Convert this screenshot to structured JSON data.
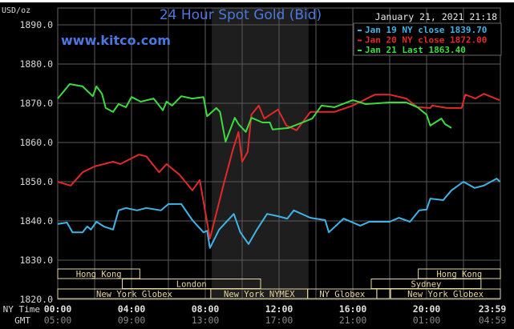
{
  "chart_data": {
    "type": "line",
    "title": "24 Hour Spot Gold (Bid)",
    "watermark": "www.kitco.com",
    "ylabel": "USD/oz",
    "timestamp": "January 21, 2021 21:18",
    "ylim": [
      1820,
      1890
    ],
    "xlim_hours": [
      0,
      24
    ],
    "grid": true,
    "legend_placement": "top-right",
    "y_ticks": [
      "1890.0",
      "1880.0",
      "1870.0",
      "1860.0",
      "1850.0",
      "1840.0",
      "1830.0",
      "1820.0"
    ],
    "x_axis": {
      "ny_label": "NY Time",
      "gmt_label": "GMT",
      "ny_ticks": [
        "00:00",
        "04:00",
        "08:00",
        "12:00",
        "16:00",
        "20:00",
        "23:59"
      ],
      "gmt_ticks": [
        "05:00",
        "09:00",
        "13:00",
        "17:00",
        "21:00",
        "01:00",
        "04:59"
      ]
    },
    "highlight_hours": [
      8.35,
      13.6
    ],
    "sessions": [
      {
        "name": "Hong Kong",
        "row": 0,
        "start": 0,
        "end": 4.45
      },
      {
        "name": "London",
        "row": 1,
        "start": 3.5,
        "end": 11
      },
      {
        "name": "New York Globex",
        "row": 2,
        "start": 0,
        "end": 8.3
      },
      {
        "name": "New York NYMEX",
        "row": 2,
        "start": 8.3,
        "end": 13.55
      },
      {
        "name": "NY Globex",
        "row": 2,
        "start": 13.55,
        "end": 17.3
      },
      {
        "name": "",
        "row": 2,
        "start": 17.3,
        "end": 18
      },
      {
        "name": "New York Globex",
        "row": 2,
        "start": 18.05,
        "end": 24
      },
      {
        "name": "Sydney",
        "row": 1,
        "start": 17,
        "end": 22.95
      },
      {
        "name": "Hong Kong",
        "row": 0,
        "start": 19.55,
        "end": 24
      }
    ],
    "series": [
      {
        "name": "Jan 19 NY close 1839.70",
        "color": "#3fb4e6",
        "points": [
          [
            0,
            1839.2
          ],
          [
            0.5,
            1839.6
          ],
          [
            0.8,
            1837.1
          ],
          [
            1.35,
            1837.1
          ],
          [
            1.6,
            1838.6
          ],
          [
            1.8,
            1837.8
          ],
          [
            2.1,
            1839.8
          ],
          [
            2.5,
            1838.6
          ],
          [
            3.0,
            1837.8
          ],
          [
            3.3,
            1842.7
          ],
          [
            3.7,
            1843.3
          ],
          [
            4.3,
            1842.7
          ],
          [
            4.8,
            1843.3
          ],
          [
            5.6,
            1842.7
          ],
          [
            6.0,
            1844.3
          ],
          [
            6.7,
            1844.3
          ],
          [
            7.3,
            1840.2
          ],
          [
            7.9,
            1837.1
          ],
          [
            8.1,
            1837.5
          ],
          [
            8.25,
            1833.1
          ],
          [
            8.75,
            1837.8
          ],
          [
            9.55,
            1841.8
          ],
          [
            9.9,
            1837.1
          ],
          [
            10.35,
            1834.1
          ],
          [
            10.8,
            1837.8
          ],
          [
            11.35,
            1841.8
          ],
          [
            11.95,
            1841.2
          ],
          [
            12.45,
            1840.6
          ],
          [
            12.8,
            1842.7
          ],
          [
            13.7,
            1840.8
          ],
          [
            14.5,
            1840.2
          ],
          [
            14.7,
            1837.1
          ],
          [
            15.5,
            1840.6
          ],
          [
            16.4,
            1838.8
          ],
          [
            16.9,
            1839.8
          ],
          [
            18.0,
            1839.8
          ],
          [
            18.5,
            1840.8
          ],
          [
            19.1,
            1839.8
          ],
          [
            19.6,
            1842.7
          ],
          [
            20.0,
            1842.9
          ],
          [
            20.2,
            1845.7
          ],
          [
            20.9,
            1845.3
          ],
          [
            21.35,
            1847.8
          ],
          [
            22.0,
            1850.0
          ],
          [
            22.6,
            1848.4
          ],
          [
            23.1,
            1849.0
          ],
          [
            23.8,
            1850.8
          ],
          [
            23.98,
            1850.0
          ]
        ]
      },
      {
        "name": "Jan 20 NY close 1872.00",
        "color": "#e02a2a",
        "points": [
          [
            0,
            1850.0
          ],
          [
            0.7,
            1849.0
          ],
          [
            1.35,
            1852.4
          ],
          [
            2.0,
            1853.9
          ],
          [
            3.0,
            1855.1
          ],
          [
            3.4,
            1854.5
          ],
          [
            4.4,
            1856.9
          ],
          [
            4.8,
            1856.5
          ],
          [
            5.5,
            1852.4
          ],
          [
            5.9,
            1854.5
          ],
          [
            6.6,
            1851.8
          ],
          [
            7.3,
            1847.8
          ],
          [
            7.7,
            1850.4
          ],
          [
            8.25,
            1835.5
          ],
          [
            9.0,
            1849.4
          ],
          [
            9.5,
            1858.2
          ],
          [
            9.8,
            1862.7
          ],
          [
            10.0,
            1855.1
          ],
          [
            10.3,
            1857.6
          ],
          [
            10.5,
            1867.1
          ],
          [
            10.9,
            1869.4
          ],
          [
            11.2,
            1866.1
          ],
          [
            11.95,
            1868.4
          ],
          [
            12.4,
            1864.3
          ],
          [
            12.95,
            1863.1
          ],
          [
            13.7,
            1867.8
          ],
          [
            15.0,
            1867.8
          ],
          [
            16.0,
            1869.4
          ],
          [
            17.2,
            1872.2
          ],
          [
            18.0,
            1872.2
          ],
          [
            18.9,
            1871.2
          ],
          [
            19.5,
            1869.0
          ],
          [
            20.2,
            1868.8
          ],
          [
            20.3,
            1869.4
          ],
          [
            21.1,
            1868.8
          ],
          [
            21.9,
            1868.8
          ],
          [
            22.1,
            1872.2
          ],
          [
            22.65,
            1871.2
          ],
          [
            23.1,
            1872.4
          ],
          [
            23.95,
            1870.8
          ]
        ]
      },
      {
        "name": "Jan 21 Last 1863.40",
        "color": "#3ddc3d",
        "points": [
          [
            0,
            1871.2
          ],
          [
            0.65,
            1874.9
          ],
          [
            1.35,
            1874.3
          ],
          [
            1.9,
            1871.8
          ],
          [
            2.1,
            1874.3
          ],
          [
            2.4,
            1872.4
          ],
          [
            2.6,
            1868.8
          ],
          [
            3.0,
            1867.8
          ],
          [
            3.3,
            1869.8
          ],
          [
            3.7,
            1869.0
          ],
          [
            4.0,
            1871.6
          ],
          [
            4.5,
            1870.4
          ],
          [
            5.2,
            1871.2
          ],
          [
            5.7,
            1868.2
          ],
          [
            5.9,
            1870.4
          ],
          [
            6.2,
            1869.4
          ],
          [
            6.7,
            1871.8
          ],
          [
            7.3,
            1871.2
          ],
          [
            7.9,
            1871.6
          ],
          [
            8.1,
            1866.7
          ],
          [
            8.6,
            1868.8
          ],
          [
            8.8,
            1867.8
          ],
          [
            9.1,
            1860.2
          ],
          [
            9.6,
            1866.3
          ],
          [
            9.8,
            1864.7
          ],
          [
            10.2,
            1862.7
          ],
          [
            10.5,
            1866.3
          ],
          [
            11.1,
            1865.1
          ],
          [
            11.5,
            1865.1
          ],
          [
            11.65,
            1863.3
          ],
          [
            12.5,
            1863.7
          ],
          [
            13.8,
            1866.1
          ],
          [
            14.3,
            1869.4
          ],
          [
            15.0,
            1869.0
          ],
          [
            16.0,
            1870.8
          ],
          [
            16.7,
            1869.8
          ],
          [
            18.0,
            1870.2
          ],
          [
            18.9,
            1870.2
          ],
          [
            19.5,
            1869.0
          ],
          [
            20.0,
            1867.1
          ],
          [
            20.2,
            1864.3
          ],
          [
            20.8,
            1866.1
          ],
          [
            21.0,
            1864.7
          ],
          [
            21.35,
            1863.7
          ]
        ]
      }
    ]
  },
  "colors": {
    "title": "#4a78e0",
    "axis_text": "#d8d8d8",
    "gmt_text": "#8a8a8a",
    "grid": "#5a5a5a",
    "highlight": "#1e1e1e",
    "session": "#e6d6a0"
  }
}
